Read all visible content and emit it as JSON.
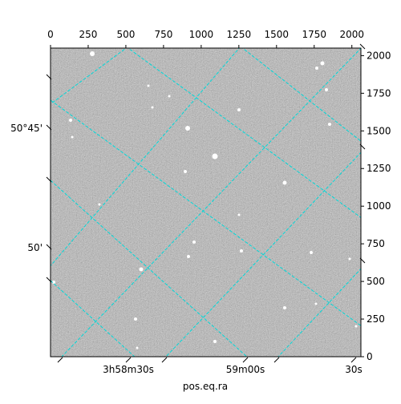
{
  "chart_data": {
    "type": "image",
    "xlabel": "pos.eq.ra",
    "xlim": [
      0,
      2060
    ],
    "xticks": [
      0,
      250,
      500,
      750,
      1000,
      1250,
      1500,
      1750,
      2000
    ],
    "ylim": [
      0,
      2050
    ],
    "yticks": [
      0,
      250,
      500,
      750,
      1000,
      1250,
      1500,
      1750,
      2000
    ],
    "ra_ticks": [
      "3h58m30s",
      "59m00s",
      "30s"
    ],
    "dec_ticks": [
      "50°45'",
      "50'"
    ]
  }
}
